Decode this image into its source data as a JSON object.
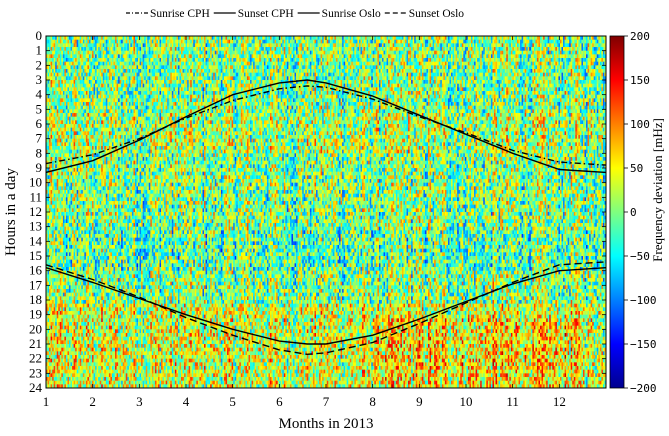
{
  "chart_data": {
    "type": "heatmap",
    "title": "",
    "xlabel": "Months in 2013",
    "ylabel": "Hours in a day",
    "colorbar_label": "Frequency deviation [mHz]",
    "colormap": "jet",
    "x_ticks": [
      "1",
      "2",
      "3",
      "4",
      "5",
      "6",
      "7",
      "8",
      "9",
      "10",
      "11",
      "12"
    ],
    "xlim": [
      1,
      13
    ],
    "y_ticks": [
      "0",
      "1",
      "2",
      "3",
      "4",
      "5",
      "6",
      "7",
      "8",
      "9",
      "10",
      "11",
      "12",
      "13",
      "14",
      "15",
      "16",
      "17",
      "18",
      "19",
      "20",
      "21",
      "22",
      "23",
      "24"
    ],
    "ylim": [
      24,
      0
    ],
    "colorbar_ticks": [
      "200",
      "150",
      "100",
      "50",
      "0",
      "−50",
      "−100",
      "−150",
      "−200"
    ],
    "clim": [
      -200,
      200
    ],
    "legend_position": "top",
    "legend": [
      {
        "name": "Sunrise CPH",
        "style": "dash-dot"
      },
      {
        "name": "Sunset CPH",
        "style": "solid"
      },
      {
        "name": "Sunrise Oslo",
        "style": "solid"
      },
      {
        "name": "Sunset Oslo",
        "style": "dashed"
      }
    ],
    "series": [
      {
        "name": "Sunrise CPH",
        "style": "dash-dot",
        "x": [
          1,
          2,
          3,
          4,
          5,
          6,
          6.6,
          7,
          8,
          9,
          10,
          11,
          12,
          13
        ],
        "y": [
          8.7,
          8.1,
          7.0,
          5.6,
          4.4,
          3.6,
          3.4,
          3.5,
          4.3,
          5.5,
          6.6,
          7.8,
          8.6,
          8.8
        ]
      },
      {
        "name": "Sunset CPH",
        "style": "solid",
        "x": [
          1,
          2,
          3,
          4,
          5,
          6,
          6.6,
          7,
          8,
          9,
          10,
          11,
          12,
          13
        ],
        "y": [
          15.8,
          16.8,
          17.9,
          19.0,
          20.0,
          20.8,
          21.0,
          21.0,
          20.4,
          19.3,
          18.1,
          16.9,
          16.0,
          15.8
        ]
      },
      {
        "name": "Sunrise Oslo",
        "style": "solid",
        "x": [
          1,
          2,
          3,
          4,
          5,
          6,
          6.6,
          7,
          8,
          9,
          10,
          11,
          12,
          13
        ],
        "y": [
          9.3,
          8.5,
          7.1,
          5.5,
          4.0,
          3.2,
          3.0,
          3.2,
          4.1,
          5.4,
          6.7,
          8.0,
          9.1,
          9.3
        ]
      },
      {
        "name": "Sunset Oslo",
        "style": "dashed",
        "x": [
          1,
          2,
          3,
          4,
          5,
          6,
          6.6,
          7,
          8,
          9,
          10,
          11,
          12,
          13
        ],
        "y": [
          15.6,
          16.6,
          17.8,
          19.2,
          20.4,
          21.4,
          21.7,
          21.6,
          20.9,
          19.6,
          18.2,
          16.8,
          15.6,
          15.4
        ]
      }
    ]
  }
}
